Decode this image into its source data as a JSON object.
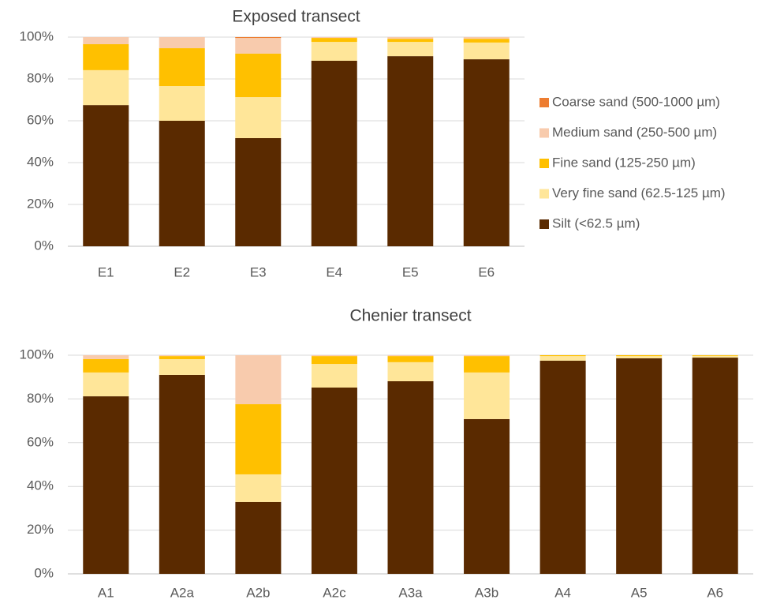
{
  "chart_data": [
    {
      "type": "stacked_bar",
      "title": "Exposed transect",
      "categories": [
        "E1",
        "E2",
        "E3",
        "E4",
        "E5",
        "E6"
      ],
      "series": [
        {
          "name": "Silt (<62.5 µm)",
          "color": "#5a2a00",
          "values": [
            67.5,
            60.0,
            51.7,
            88.7,
            90.9,
            89.4
          ]
        },
        {
          "name": "Very fine sand (62.5-125 µm)",
          "color": "#ffe699",
          "values": [
            16.7,
            16.6,
            19.6,
            9.0,
            6.8,
            8.0
          ]
        },
        {
          "name": "Fine sand (125-250 µm)",
          "color": "#ffc000",
          "values": [
            12.4,
            18.1,
            20.8,
            1.9,
            1.5,
            1.8
          ]
        },
        {
          "name": "Medium sand (250-500 µm)",
          "color": "#f8cbad",
          "values": [
            3.4,
            5.3,
            7.5,
            0.4,
            0.8,
            0.8
          ]
        },
        {
          "name": "Coarse sand (500-1000 µm)",
          "color": "#ed7d31",
          "values": [
            0,
            0,
            0.4,
            0,
            0,
            0
          ]
        }
      ],
      "ylim": [
        0,
        100
      ],
      "yticks": [
        {
          "value": 0,
          "label": "0%"
        },
        {
          "value": 20,
          "label": "20%"
        },
        {
          "value": 40,
          "label": "40%"
        },
        {
          "value": 60,
          "label": "60%"
        },
        {
          "value": 80,
          "label": "80%"
        },
        {
          "value": 100,
          "label": "100%"
        }
      ],
      "grid": true,
      "legend": "right"
    },
    {
      "type": "stacked_bar",
      "title": "Chenier transect",
      "categories": [
        "A1",
        "A2a",
        "A2b",
        "A2c",
        "A3a",
        "A3b",
        "A4",
        "A5",
        "A6"
      ],
      "series": [
        {
          "color": "#5a2a00",
          "values": [
            81.2,
            91.0,
            32.9,
            85.2,
            88.1,
            70.8,
            97.5,
            98.6,
            98.9
          ]
        },
        {
          "color": "#ffe699",
          "values": [
            10.9,
            7.2,
            12.6,
            10.8,
            8.7,
            21.3,
            2.1,
            1.0,
            0.8
          ]
        },
        {
          "color": "#ffc000",
          "values": [
            6.1,
            1.4,
            32.1,
            3.6,
            2.8,
            7.5,
            0.4,
            0.4,
            0.3
          ]
        },
        {
          "color": "#f8cbad",
          "values": [
            1.8,
            0.4,
            22.4,
            0.4,
            0.4,
            0.4,
            0,
            0,
            0
          ]
        },
        {
          "color": "#ed7d31",
          "values": [
            0,
            0,
            0,
            0,
            0,
            0,
            0,
            0,
            0
          ]
        }
      ],
      "ylim": [
        0,
        100
      ],
      "yticks": [
        {
          "value": 0,
          "label": "0%"
        },
        {
          "value": 20,
          "label": "20%"
        },
        {
          "value": 40,
          "label": "40%"
        },
        {
          "value": 60,
          "label": "60%"
        },
        {
          "value": 80,
          "label": "80%"
        },
        {
          "value": 100,
          "label": "100%"
        }
      ],
      "grid": true
    }
  ]
}
